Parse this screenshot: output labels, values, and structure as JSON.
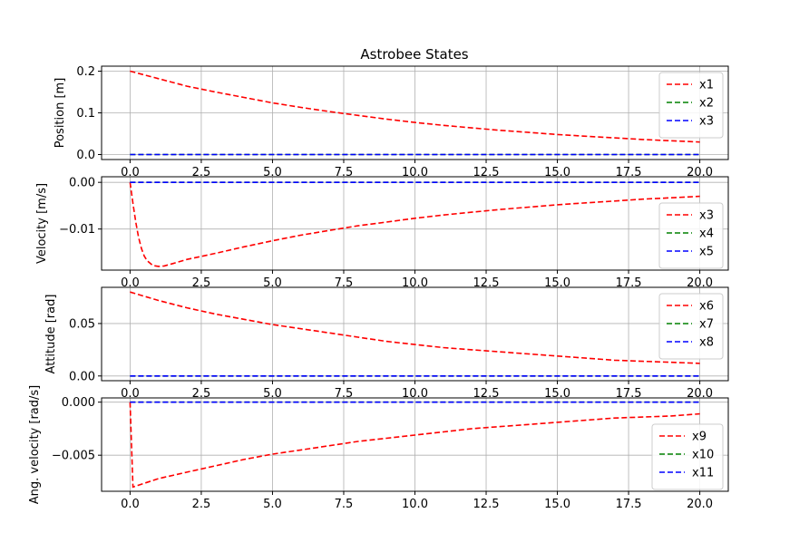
{
  "figure": {
    "title": "Astrobee States"
  },
  "chart_data": [
    {
      "type": "line",
      "ylabel": "Position [m]",
      "xlabel": "",
      "xlim": [
        -1.0,
        21.0
      ],
      "ylim": [
        -0.012,
        0.212
      ],
      "xticks": [
        0.0,
        2.5,
        5.0,
        7.5,
        10.0,
        12.5,
        15.0,
        17.5,
        20.0
      ],
      "xtick_labels": [
        "0.0",
        "2.5",
        "5.0",
        "7.5",
        "10.0",
        "12.5",
        "15.0",
        "17.5",
        "20.0"
      ],
      "yticks": [
        0.0,
        0.1,
        0.2
      ],
      "ytick_labels": [
        "0.0",
        "0.1",
        "0.2"
      ],
      "grid": true,
      "legend_position": "upper-right",
      "x": [
        0,
        1,
        2,
        3,
        4,
        5,
        6,
        7,
        8,
        9,
        10,
        11,
        12,
        13,
        14,
        15,
        16,
        17,
        18,
        19,
        20
      ],
      "series": [
        {
          "name": "x1",
          "color": "#ff0000",
          "style": "dashed",
          "values": [
            0.2,
            0.182,
            0.164,
            0.15,
            0.137,
            0.124,
            0.113,
            0.103,
            0.094,
            0.085,
            0.077,
            0.07,
            0.064,
            0.058,
            0.053,
            0.048,
            0.044,
            0.04,
            0.036,
            0.033,
            0.03
          ]
        },
        {
          "name": "x2",
          "color": "#008000",
          "style": "dashed",
          "values": [
            0,
            0,
            0,
            0,
            0,
            0,
            0,
            0,
            0,
            0,
            0,
            0,
            0,
            0,
            0,
            0,
            0,
            0,
            0,
            0,
            0
          ]
        },
        {
          "name": "x3",
          "color": "#0000ff",
          "style": "dashed",
          "values": [
            0,
            0,
            0,
            0,
            0,
            0,
            0,
            0,
            0,
            0,
            0,
            0,
            0,
            0,
            0,
            0,
            0,
            0,
            0,
            0,
            0
          ]
        }
      ]
    },
    {
      "type": "line",
      "ylabel": "Velocity [m/s]",
      "xlabel": "",
      "xlim": [
        -1.0,
        21.0
      ],
      "ylim": [
        -0.0188,
        0.0012
      ],
      "xticks": [
        0.0,
        2.5,
        5.0,
        7.5,
        10.0,
        12.5,
        15.0,
        17.5,
        20.0
      ],
      "xtick_labels": [
        "0.0",
        "2.5",
        "5.0",
        "7.5",
        "10.0",
        "12.5",
        "15.0",
        "17.5",
        "20.0"
      ],
      "yticks": [
        0.0,
        -0.01
      ],
      "ytick_labels": [
        "0.00",
        "−0.01"
      ],
      "grid": true,
      "legend_position": "lower-right",
      "x": [
        0,
        0.1,
        0.2,
        0.3,
        0.4,
        0.5,
        0.6,
        0.8,
        1.0,
        1.2,
        1.5,
        2,
        3,
        4,
        5,
        6,
        7,
        8,
        9,
        10,
        11,
        12,
        13,
        14,
        15,
        16,
        17,
        18,
        19,
        20
      ],
      "series": [
        {
          "name": "x3",
          "color": "#ff0000",
          "style": "dashed",
          "values": [
            0,
            -0.0045,
            -0.0085,
            -0.0118,
            -0.0142,
            -0.0158,
            -0.0168,
            -0.0178,
            -0.018,
            -0.0179,
            -0.0174,
            -0.0165,
            -0.0152,
            -0.0138,
            -0.0125,
            -0.0113,
            -0.0103,
            -0.0093,
            -0.0085,
            -0.0077,
            -0.007,
            -0.0064,
            -0.0058,
            -0.0053,
            -0.0048,
            -0.0044,
            -0.004,
            -0.0036,
            -0.0033,
            -0.003
          ]
        },
        {
          "name": "x4",
          "color": "#008000",
          "style": "dashed",
          "values": [
            0,
            0,
            0,
            0,
            0,
            0,
            0,
            0,
            0,
            0,
            0,
            0,
            0,
            0,
            0,
            0,
            0,
            0,
            0,
            0,
            0,
            0,
            0,
            0,
            0,
            0,
            0,
            0,
            0,
            0
          ]
        },
        {
          "name": "x5",
          "color": "#0000ff",
          "style": "dashed",
          "values": [
            0,
            0,
            0,
            0,
            0,
            0,
            0,
            0,
            0,
            0,
            0,
            0,
            0,
            0,
            0,
            0,
            0,
            0,
            0,
            0,
            0,
            0,
            0,
            0,
            0,
            0,
            0,
            0,
            0,
            0
          ]
        }
      ]
    },
    {
      "type": "line",
      "ylabel": "Attitude [rad]",
      "xlabel": "",
      "xlim": [
        -1.0,
        21.0
      ],
      "ylim": [
        -0.0045,
        0.0845
      ],
      "xticks": [
        0.0,
        2.5,
        5.0,
        7.5,
        10.0,
        12.5,
        15.0,
        17.5,
        20.0
      ],
      "xtick_labels": [
        "0.0",
        "2.5",
        "5.0",
        "7.5",
        "10.0",
        "12.5",
        "15.0",
        "17.5",
        "20.0"
      ],
      "yticks": [
        0.0,
        0.05
      ],
      "ytick_labels": [
        "0.00",
        "0.05"
      ],
      "grid": true,
      "legend_position": "upper-right",
      "x": [
        0,
        1,
        2,
        3,
        4,
        5,
        6,
        7,
        8,
        9,
        10,
        11,
        12,
        13,
        14,
        15,
        16,
        17,
        18,
        19,
        20
      ],
      "series": [
        {
          "name": "x6",
          "color": "#ff0000",
          "style": "dashed",
          "values": [
            0.08,
            0.072,
            0.065,
            0.059,
            0.054,
            0.049,
            0.045,
            0.041,
            0.037,
            0.033,
            0.03,
            0.027,
            0.025,
            0.023,
            0.021,
            0.019,
            0.017,
            0.015,
            0.014,
            0.013,
            0.012
          ]
        },
        {
          "name": "x7",
          "color": "#008000",
          "style": "dashed",
          "values": [
            0,
            0,
            0,
            0,
            0,
            0,
            0,
            0,
            0,
            0,
            0,
            0,
            0,
            0,
            0,
            0,
            0,
            0,
            0,
            0,
            0
          ]
        },
        {
          "name": "x8",
          "color": "#0000ff",
          "style": "dashed",
          "values": [
            0,
            0,
            0,
            0,
            0,
            0,
            0,
            0,
            0,
            0,
            0,
            0,
            0,
            0,
            0,
            0,
            0,
            0,
            0,
            0,
            0
          ]
        }
      ]
    },
    {
      "type": "line",
      "ylabel": "Ang. velocity [rad/s]",
      "xlabel": "",
      "xlim": [
        -1.0,
        21.0
      ],
      "ylim": [
        -0.0084,
        0.0004
      ],
      "xticks": [
        0.0,
        2.5,
        5.0,
        7.5,
        10.0,
        12.5,
        15.0,
        17.5,
        20.0
      ],
      "xtick_labels": [
        "0.0",
        "2.5",
        "5.0",
        "7.5",
        "10.0",
        "12.5",
        "15.0",
        "17.5",
        "20.0"
      ],
      "yticks": [
        0.0,
        -0.005
      ],
      "ytick_labels": [
        "0.000",
        "−0.005"
      ],
      "grid": true,
      "legend_position": "lower-right",
      "x": [
        0,
        0.1,
        1,
        2,
        3,
        4,
        5,
        6,
        7,
        8,
        9,
        10,
        11,
        12,
        13,
        14,
        15,
        16,
        17,
        18,
        19,
        20
      ],
      "series": [
        {
          "name": "x9",
          "color": "#ff0000",
          "style": "dashed",
          "values": [
            0,
            -0.008,
            -0.0072,
            -0.0066,
            -0.006,
            -0.0054,
            -0.0049,
            -0.0045,
            -0.0041,
            -0.0037,
            -0.0034,
            -0.0031,
            -0.0028,
            -0.0025,
            -0.0023,
            -0.0021,
            -0.0019,
            -0.0017,
            -0.0015,
            -0.0014,
            -0.0013,
            -0.0011
          ]
        },
        {
          "name": "x10",
          "color": "#008000",
          "style": "dashed",
          "values": [
            0,
            0,
            0,
            0,
            0,
            0,
            0,
            0,
            0,
            0,
            0,
            0,
            0,
            0,
            0,
            0,
            0,
            0,
            0,
            0,
            0,
            0
          ]
        },
        {
          "name": "x11",
          "color": "#0000ff",
          "style": "dashed",
          "values": [
            0,
            0,
            0,
            0,
            0,
            0,
            0,
            0,
            0,
            0,
            0,
            0,
            0,
            0,
            0,
            0,
            0,
            0,
            0,
            0,
            0,
            0
          ]
        }
      ]
    }
  ]
}
